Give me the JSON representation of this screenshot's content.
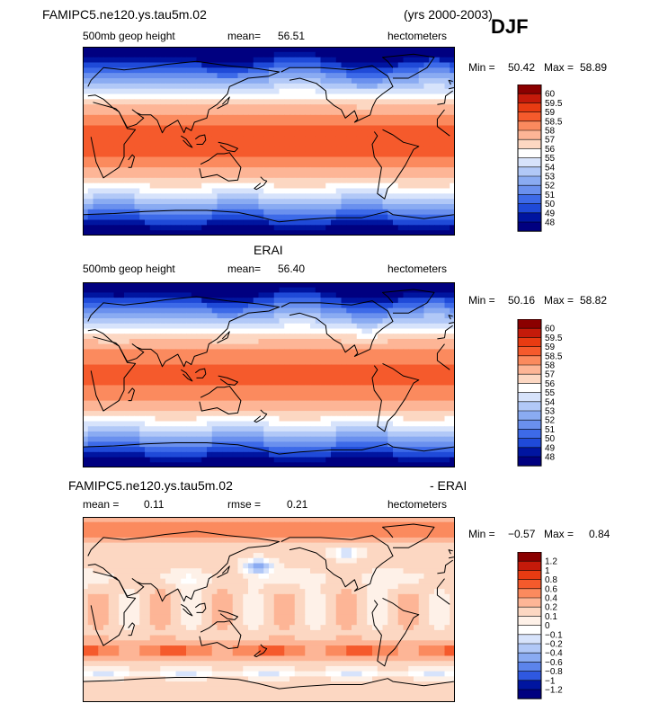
{
  "header": {
    "case_name": "FAMIPC5.ne120.ys.tau5m.02",
    "years": "(yrs 2000-2003)",
    "season": "DJF"
  },
  "colors": {
    "warm_dark": "#8b0000",
    "warm": "#ef5a2a",
    "neutral": "#ffffff",
    "cool": "#3a6ae8",
    "cool_dark": "#00007f",
    "coastline": "#000000"
  },
  "chart_data": [
    {
      "type": "heatmap",
      "title": "",
      "subtitle_left": "500mb geop height",
      "mean_label": "mean=",
      "mean_value": "56.51",
      "units": "hectometers",
      "min_label": "Min =",
      "min_value": "50.42",
      "max_label": "Max =",
      "max_value": "58.89",
      "colorbar_levels": [
        "60",
        "59.5",
        "59",
        "58.5",
        "58",
        "57",
        "56",
        "55",
        "54",
        "53",
        "52",
        "51",
        "50",
        "49",
        "48"
      ],
      "colorbar_colors": [
        "#8b0000",
        "#c41a0a",
        "#e83b12",
        "#f55a2c",
        "#fb8a5e",
        "#fdb596",
        "#fcd7c2",
        "#ffffff",
        "#d7e3fb",
        "#b1c8f7",
        "#8aabf2",
        "#6a90ee",
        "#3d6ae8",
        "#1f4ad8",
        "#0015a0",
        "#000080"
      ],
      "field": "z500",
      "value_range": [
        50.42,
        58.89
      ]
    },
    {
      "type": "heatmap",
      "title": "ERAI",
      "subtitle_left": "500mb geop height",
      "mean_label": "mean=",
      "mean_value": "56.40",
      "units": "hectometers",
      "min_label": "Min =",
      "min_value": "50.16",
      "max_label": "Max =",
      "max_value": "58.82",
      "colorbar_levels": [
        "60",
        "59.5",
        "59",
        "58.5",
        "58",
        "57",
        "56",
        "55",
        "54",
        "53",
        "52",
        "51",
        "50",
        "49",
        "48"
      ],
      "colorbar_colors": [
        "#8b0000",
        "#c41a0a",
        "#e83b12",
        "#f55a2c",
        "#fb8a5e",
        "#fdb596",
        "#fcd7c2",
        "#ffffff",
        "#d7e3fb",
        "#b1c8f7",
        "#8aabf2",
        "#6a90ee",
        "#3d6ae8",
        "#1f4ad8",
        "#0015a0",
        "#000080"
      ],
      "field": "z500",
      "value_range": [
        50.16,
        58.82
      ]
    },
    {
      "type": "heatmap",
      "title": "FAMIPC5.ne120.ys.tau5m.02",
      "title_right": "- ERAI",
      "subtitle_left": "mean =",
      "mean_value": "0.11",
      "rmse_label": "rmse =",
      "rmse_value": "0.21",
      "units": "hectometers",
      "min_label": "Min =",
      "min_value": "−0.57",
      "max_label": "Max =",
      "max_value": "0.84",
      "colorbar_levels": [
        "1.2",
        "1",
        "0.8",
        "0.6",
        "0.4",
        "0.2",
        "0.1",
        "0",
        "−0.1",
        "−0.2",
        "−0.4",
        "−0.6",
        "−0.8",
        "−1",
        "−1.2"
      ],
      "colorbar_colors": [
        "#8b0000",
        "#c41a0a",
        "#e83b12",
        "#f55a2c",
        "#fb8a5e",
        "#fdb596",
        "#fcd7c2",
        "#fef1e8",
        "#ffffff",
        "#d7e3fb",
        "#b1c8f7",
        "#8aabf2",
        "#5c84ec",
        "#2f58e0",
        "#0015a0",
        "#000080"
      ],
      "field": "diff",
      "value_range": [
        -0.57,
        0.84
      ]
    }
  ]
}
